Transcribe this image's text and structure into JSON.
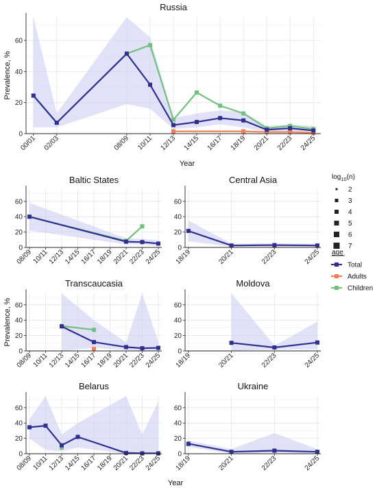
{
  "chart_data": {
    "type": "line",
    "shared": {
      "y_axis_label": "Prevalence, %",
      "x_axis_label": "Year",
      "colors": {
        "Total": "#2e2f8f",
        "Adults": "#ef7f55",
        "Children": "#72c07e",
        "ribbon": "#c9cbf2"
      }
    },
    "legend": {
      "size_title_base": "log",
      "size_title_sub": "10",
      "size_title_tail": "(n)",
      "size_entries": [
        "2",
        "3",
        "4",
        "5",
        "6",
        "7"
      ],
      "color_title": "age",
      "color_entries": [
        "Total",
        "Adults",
        "Children"
      ]
    },
    "panels": [
      {
        "id": "russia",
        "title": "Russia",
        "categories": [
          "00/01",
          "02/03",
          "08/09",
          "10/11",
          "12/13",
          "14/15",
          "16/17",
          "18/19",
          "20/21",
          "22/23",
          "24/25"
        ],
        "ylim": [
          0,
          75
        ],
        "yticks": [
          0,
          20,
          40,
          60
        ],
        "show_ylabel": true,
        "show_xlabel": true,
        "series": [
          {
            "name": "Total",
            "points": [
              [
                "00/01",
                24.5
              ],
              [
                "02/03",
                7
              ],
              [
                "08/09",
                51.5
              ],
              [
                "10/11",
                31.5
              ],
              [
                "12/13",
                5.5
              ],
              [
                "14/15",
                7.5
              ],
              [
                "16/17",
                10
              ],
              [
                "18/19",
                8.5
              ],
              [
                "20/21",
                2.5
              ],
              [
                "22/23",
                3.5
              ],
              [
                "24/25",
                2
              ]
            ],
            "band": [
              [
                "00/01",
                4,
                75
              ],
              [
                "02/03",
                4,
                13
              ],
              [
                "08/09",
                19,
                75
              ],
              [
                "10/11",
                16,
                62
              ],
              [
                "12/13",
                3,
                10
              ],
              [
                "14/15",
                4,
                13
              ],
              [
                "16/17",
                6,
                15
              ],
              [
                "18/19",
                4,
                14
              ],
              [
                "20/21",
                1,
                5
              ],
              [
                "22/23",
                1,
                6
              ],
              [
                "24/25",
                0,
                5
              ]
            ]
          },
          {
            "name": "Adults",
            "points": [
              [
                "12/13",
                1.5
              ],
              [
                "18/19",
                1.5
              ],
              [
                "20/21",
                1.0
              ],
              [
                "22/23",
                1.0
              ],
              [
                "24/25",
                0.5
              ]
            ],
            "band": []
          },
          {
            "name": "Children",
            "points": [
              [
                "00/01",
                24.5
              ],
              [
                "02/03",
                7
              ],
              [
                "08/09",
                51.5
              ],
              [
                "10/11",
                57
              ],
              [
                "12/13",
                9
              ],
              [
                "14/15",
                26.5
              ],
              [
                "16/17",
                18
              ],
              [
                "18/19",
                13
              ],
              [
                "20/21",
                3.5
              ],
              [
                "22/23",
                5
              ],
              [
                "24/25",
                3
              ]
            ],
            "band": []
          }
        ]
      },
      {
        "id": "baltic",
        "title": "Baltic States",
        "categories": [
          "08/09",
          "10/11",
          "12/13",
          "14/15",
          "16/17",
          "18/19",
          "20/21",
          "22/23",
          "24/25"
        ],
        "ylim": [
          0,
          75
        ],
        "yticks": [
          0,
          20,
          40,
          60
        ],
        "show_ylabel": false,
        "show_xlabel": false,
        "series": [
          {
            "name": "Total",
            "points": [
              [
                "08/09",
                40
              ],
              [
                "20/21",
                7.5
              ],
              [
                "22/23",
                7
              ],
              [
                "24/25",
                5
              ]
            ],
            "band": [
              [
                "08/09",
                22,
                58
              ],
              [
                "20/21",
                4,
                12
              ],
              [
                "22/23",
                4,
                11
              ],
              [
                "24/25",
                2,
                9
              ]
            ]
          },
          {
            "name": "Children",
            "points": [
              [
                "08/09",
                40
              ],
              [
                "20/21",
                8.5
              ],
              [
                "22/23",
                27.5
              ]
            ],
            "band": []
          }
        ]
      },
      {
        "id": "central_asia",
        "title": "Central Asia",
        "categories": [
          "18/19",
          "20/21",
          "22/23",
          "24/25"
        ],
        "ylim": [
          0,
          75
        ],
        "yticks": [
          0,
          20,
          40,
          60
        ],
        "show_ylabel": false,
        "show_xlabel": false,
        "series": [
          {
            "name": "Total",
            "points": [
              [
                "18/19",
                21.5
              ],
              [
                "20/21",
                2.5
              ],
              [
                "22/23",
                3
              ],
              [
                "24/25",
                2.5
              ]
            ],
            "band": [
              [
                "18/19",
                8,
                35
              ],
              [
                "20/21",
                1,
                5
              ],
              [
                "22/23",
                1,
                5
              ],
              [
                "24/25",
                1,
                5
              ]
            ]
          }
        ]
      },
      {
        "id": "transcaucasia",
        "title": "Transcaucasia",
        "categories": [
          "08/09",
          "10/11",
          "12/13",
          "14/15",
          "16/17",
          "18/19",
          "20/21",
          "22/23",
          "24/25"
        ],
        "ylim": [
          0,
          75
        ],
        "yticks": [
          0,
          20,
          40,
          60
        ],
        "show_ylabel": true,
        "show_xlabel": false,
        "series": [
          {
            "name": "Total",
            "points": [
              [
                "12/13",
                32
              ],
              [
                "16/17",
                11.5
              ],
              [
                "20/21",
                5
              ],
              [
                "22/23",
                3.5
              ],
              [
                "24/25",
                4
              ]
            ],
            "band": [
              [
                "12/13",
                0,
                75
              ],
              [
                "16/17",
                4,
                40
              ],
              [
                "20/21",
                1,
                11
              ],
              [
                "22/23",
                0,
                75
              ],
              [
                "24/25",
                0,
                12
              ]
            ]
          },
          {
            "name": "Adults",
            "points": [
              [
                "16/17",
                2.5
              ]
            ],
            "band": []
          },
          {
            "name": "Children",
            "points": [
              [
                "12/13",
                32.5
              ],
              [
                "16/17",
                27.5
              ]
            ],
            "band": []
          }
        ]
      },
      {
        "id": "moldova",
        "title": "Moldova",
        "categories": [
          "18/19",
          "20/21",
          "22/23",
          "24/25"
        ],
        "ylim": [
          0,
          75
        ],
        "yticks": [
          0,
          20,
          40,
          60
        ],
        "show_ylabel": false,
        "show_xlabel": false,
        "series": [
          {
            "name": "Total",
            "points": [
              [
                "20/21",
                10.5
              ],
              [
                "22/23",
                4.5
              ],
              [
                "24/25",
                11
              ]
            ],
            "band": [
              [
                "20/21",
                0,
                75
              ],
              [
                "22/23",
                2,
                7
              ],
              [
                "24/25",
                2,
                38
              ]
            ]
          }
        ]
      },
      {
        "id": "belarus",
        "title": "Belarus",
        "categories": [
          "08/09",
          "10/11",
          "12/13",
          "14/15",
          "16/17",
          "18/19",
          "20/21",
          "22/23",
          "24/25"
        ],
        "ylim": [
          0,
          75
        ],
        "yticks": [
          0,
          20,
          40,
          60
        ],
        "show_ylabel": false,
        "show_xlabel": false,
        "series": [
          {
            "name": "Total",
            "points": [
              [
                "08/09",
                34.5
              ],
              [
                "10/11",
                36.5
              ],
              [
                "12/13",
                11
              ],
              [
                "14/15",
                22
              ],
              [
                "20/21",
                1
              ],
              [
                "22/23",
                0.5
              ],
              [
                "24/25",
                0.5
              ]
            ],
            "band": [
              [
                "08/09",
                20,
                45
              ],
              [
                "10/11",
                5,
                75
              ],
              [
                "12/13",
                3,
                25
              ],
              [
                "14/15",
                8,
                40
              ],
              [
                "20/21",
                0,
                75
              ],
              [
                "22/23",
                0,
                25
              ],
              [
                "24/25",
                0,
                68
              ]
            ]
          },
          {
            "name": "Children",
            "points": [
              [
                "12/13",
                8
              ]
            ],
            "band": []
          }
        ]
      },
      {
        "id": "ukraine",
        "title": "Ukraine",
        "categories": [
          "18/19",
          "20/21",
          "22/23",
          "24/25"
        ],
        "ylim": [
          0,
          75
        ],
        "yticks": [
          0,
          20,
          40,
          60
        ],
        "show_ylabel": false,
        "show_xlabel": true,
        "series": [
          {
            "name": "Total",
            "points": [
              [
                "18/19",
                13
              ],
              [
                "20/21",
                2.5
              ],
              [
                "22/23",
                4
              ],
              [
                "24/25",
                2.5
              ]
            ],
            "band": [
              [
                "18/19",
                9,
                17
              ],
              [
                "20/21",
                0,
                6
              ],
              [
                "22/23",
                1,
                27
              ],
              [
                "24/25",
                0,
                6
              ]
            ]
          },
          {
            "name": "Children",
            "points": [
              [
                "18/19",
                12.5
              ]
            ],
            "band": []
          }
        ]
      }
    ]
  }
}
